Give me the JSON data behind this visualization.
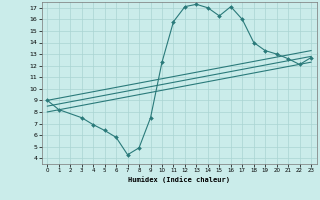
{
  "xlabel": "Humidex (Indice chaleur)",
  "bg_color": "#caecea",
  "grid_color": "#aad4d2",
  "line_color": "#2a7a7a",
  "xlim": [
    -0.5,
    23.5
  ],
  "ylim": [
    3.5,
    17.5
  ],
  "xticks": [
    0,
    1,
    2,
    3,
    4,
    5,
    6,
    7,
    8,
    9,
    10,
    11,
    12,
    13,
    14,
    15,
    16,
    17,
    18,
    19,
    20,
    21,
    22,
    23
  ],
  "yticks": [
    4,
    5,
    6,
    7,
    8,
    9,
    10,
    11,
    12,
    13,
    14,
    15,
    16,
    17
  ],
  "curve1_x": [
    0,
    1,
    3,
    4,
    5,
    6,
    7,
    8,
    9,
    10,
    11,
    12,
    13,
    14,
    15,
    16,
    17,
    18,
    19,
    20,
    21,
    22,
    23
  ],
  "curve1_y": [
    9.0,
    8.2,
    7.5,
    6.9,
    6.4,
    5.8,
    4.3,
    4.9,
    7.5,
    12.3,
    15.8,
    17.1,
    17.3,
    17.0,
    16.3,
    17.1,
    16.0,
    14.0,
    13.3,
    13.0,
    12.6,
    12.1,
    12.7
  ],
  "line1_x": [
    0,
    23
  ],
  "line1_y": [
    9.0,
    13.3
  ],
  "line2_x": [
    0,
    23
  ],
  "line2_y": [
    8.5,
    12.8
  ],
  "line3_x": [
    0,
    23
  ],
  "line3_y": [
    8.0,
    12.3
  ]
}
